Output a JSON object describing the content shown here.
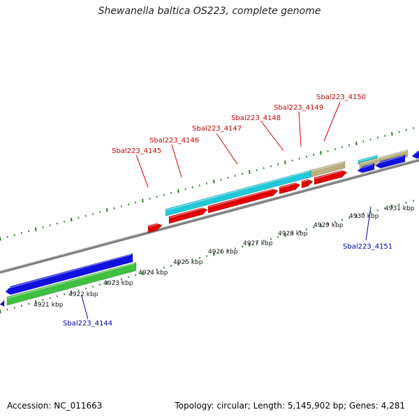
{
  "title": "Shewanella baltica OS223, complete genome",
  "footer": {
    "accession": "Accession: NC_011663",
    "topology": "Topology: circular; Length: 5,145,902 bp; Genes: 4,281"
  },
  "colors": {
    "backbone": "#808080",
    "tick": "#2a7a2a",
    "cds_forward": "#e00000",
    "cds_reverse": "#1010e0",
    "gene": "#20c8d8",
    "other": "#b8b080",
    "rna": "#40c040",
    "label_red": "#cc0000",
    "label_blue": "#0000aa"
  },
  "kbp_labels": [
    "4921 kbp",
    "4922 kbp",
    "4923 kbp",
    "4924 kbp",
    "4925 kbp",
    "4926 kbp",
    "4927 kbp",
    "4928 kbp",
    "4929 kbp",
    "4930 kbp",
    "4931 kbp"
  ],
  "gene_labels": [
    {
      "text": "Sbal223_4144",
      "color": "blue"
    },
    {
      "text": "Sbal223_4145",
      "color": "red"
    },
    {
      "text": "Sbal223_4146",
      "color": "red"
    },
    {
      "text": "Sbal223_4147",
      "color": "red"
    },
    {
      "text": "Sbal223_4148",
      "color": "red"
    },
    {
      "text": "Sbal223_4149",
      "color": "red"
    },
    {
      "text": "Sbal223_4150",
      "color": "red"
    },
    {
      "text": "Sbal223_4151",
      "color": "blue"
    }
  ]
}
